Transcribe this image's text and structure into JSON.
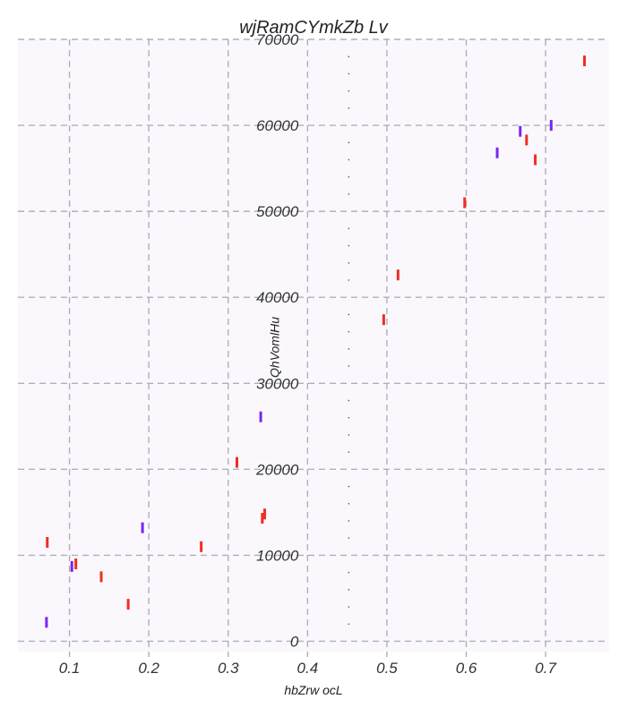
{
  "chart_data": {
    "type": "scatter",
    "title": "wjRamCYmkZb Lv",
    "xlabel": "hbZrw  ocL",
    "ylabel": "QhVomlHu",
    "xlim": [
      0.035,
      0.78
    ],
    "ylim": [
      -1200,
      70000
    ],
    "xticks": [
      0.1,
      0.2,
      0.3,
      0.4,
      0.5,
      0.6,
      0.7
    ],
    "yticks": [
      0,
      10000,
      20000,
      30000,
      40000,
      50000,
      60000,
      70000
    ],
    "grid": true,
    "marker": "vertical-line",
    "background": "#fbf8fd",
    "series": [
      {
        "color": "#ef2e20",
        "points": [
          {
            "x": 0.072,
            "y": 11500
          },
          {
            "x": 0.108,
            "y": 9000
          },
          {
            "x": 0.14,
            "y": 7500
          },
          {
            "x": 0.174,
            "y": 4300
          },
          {
            "x": 0.266,
            "y": 11000
          },
          {
            "x": 0.311,
            "y": 20800
          },
          {
            "x": 0.343,
            "y": 14300
          },
          {
            "x": 0.346,
            "y": 14800
          },
          {
            "x": 0.496,
            "y": 37400
          },
          {
            "x": 0.514,
            "y": 42600
          },
          {
            "x": 0.598,
            "y": 51000
          },
          {
            "x": 0.676,
            "y": 58300
          },
          {
            "x": 0.687,
            "y": 56000
          },
          {
            "x": 0.749,
            "y": 67500
          }
        ]
      },
      {
        "color": "#7a26f0",
        "points": [
          {
            "x": 0.071,
            "y": 2200
          },
          {
            "x": 0.103,
            "y": 8700
          },
          {
            "x": 0.192,
            "y": 13200
          },
          {
            "x": 0.341,
            "y": 26100
          },
          {
            "x": 0.639,
            "y": 56800
          },
          {
            "x": 0.668,
            "y": 59300
          },
          {
            "x": 0.707,
            "y": 60000
          }
        ]
      }
    ]
  }
}
